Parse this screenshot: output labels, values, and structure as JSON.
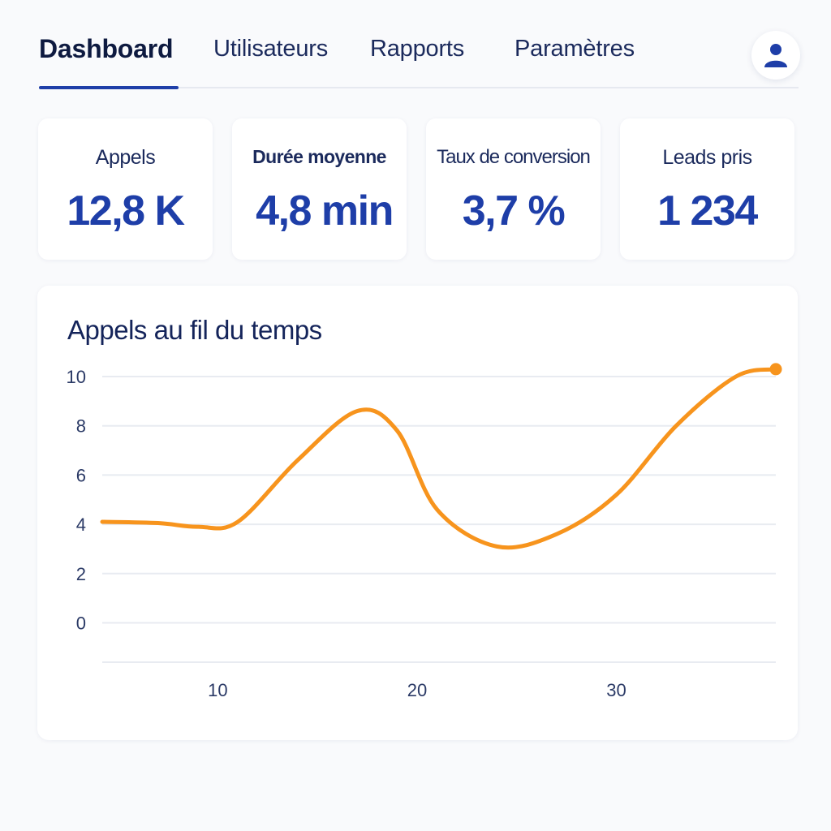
{
  "nav": {
    "tabs": [
      {
        "label": "Dashboard",
        "active": true
      },
      {
        "label": "Utilisateurs",
        "active": false
      },
      {
        "label": "Rapports",
        "active": false
      },
      {
        "label": "Paramètres",
        "active": false
      }
    ],
    "avatar_icon": "user-icon"
  },
  "kpis": [
    {
      "label": "Appels",
      "value": "12,8 K"
    },
    {
      "label": "Durée moyenne",
      "value": "4,8 min"
    },
    {
      "label": "Taux de conversion",
      "value": "3,7 %"
    },
    {
      "label": "Leads pris",
      "value": "1 234"
    }
  ],
  "colors": {
    "accent": "#1e3ea8",
    "line": "#f7941d",
    "text_dark": "#14245a"
  },
  "chart_data": {
    "type": "line",
    "title": "Appels au fil du temps",
    "xlabel": "",
    "ylabel": "",
    "xlim": [
      4.2,
      38
    ],
    "ylim": [
      -1.6,
      10
    ],
    "yticks": [
      0,
      2,
      4,
      6,
      8,
      10
    ],
    "xticks": [
      10,
      20,
      30
    ],
    "grid": true,
    "legend": "none",
    "series": [
      {
        "color": "#f7941d",
        "x": [
          4.2,
          7,
          9,
          11,
          14,
          17,
          19,
          21,
          24,
          27,
          30,
          33,
          36,
          38
        ],
        "y": [
          4.1,
          4.05,
          3.9,
          4.1,
          6.6,
          8.6,
          7.8,
          4.6,
          3.1,
          3.6,
          5.2,
          8.0,
          10.0,
          10.3
        ]
      }
    ]
  }
}
